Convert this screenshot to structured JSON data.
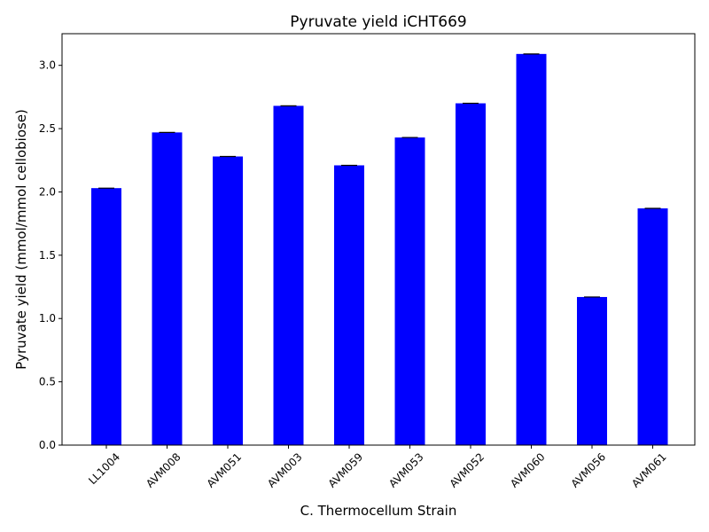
{
  "chart_data": {
    "type": "bar",
    "title": "Pyruvate yield iCHT669",
    "xlabel": "C. Thermocellum Strain",
    "ylabel": "Pyruvate yield (mmol/mmol cellobiose)",
    "categories": [
      "LL1004",
      "AVM008",
      "AVM051",
      "AVM003",
      "AVM059",
      "AVM053",
      "AVM052",
      "AVM060",
      "AVM056",
      "AVM061"
    ],
    "values": [
      2.03,
      2.47,
      2.28,
      2.68,
      2.21,
      2.43,
      2.7,
      3.09,
      1.17,
      1.87
    ],
    "ylim": [
      0,
      3.25
    ],
    "yticks": [
      "0.0",
      "0.5",
      "1.0",
      "1.5",
      "2.0",
      "2.5",
      "3.0"
    ],
    "error_bars": true,
    "bar_color": "#0000ff",
    "grid": false
  }
}
